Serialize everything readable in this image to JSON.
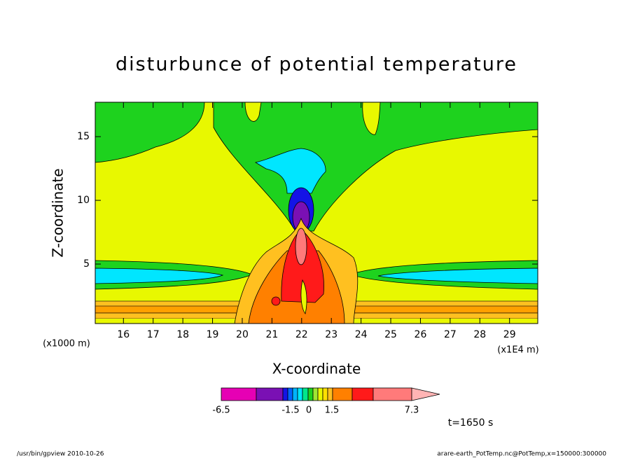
{
  "chart_data": {
    "type": "contour",
    "title": "disturbunce of potential temperature",
    "x_label": "X-coordinate",
    "y_label": "Z-coordinate",
    "x_unit": "(x1E4 m)",
    "left_note": "(x1000 m)",
    "xlim": [
      15.05,
      29.95
    ],
    "xticks": [
      16,
      17,
      18,
      19,
      20,
      21,
      22,
      23,
      24,
      25,
      26,
      27,
      28,
      29
    ],
    "ylim": [
      0.33,
      17.7
    ],
    "yticks": [
      5,
      10,
      15
    ],
    "colorbar_labels": [
      "-6.5",
      "-1.5",
      "0",
      "1.5",
      "7.3"
    ],
    "time_note": "t=1650 s",
    "footer_left": "/usr/bin/gpview  2010-10-26",
    "footer_right": "arare-earth_PotTemp.nc@PotTemp,x=150000:300000"
  }
}
